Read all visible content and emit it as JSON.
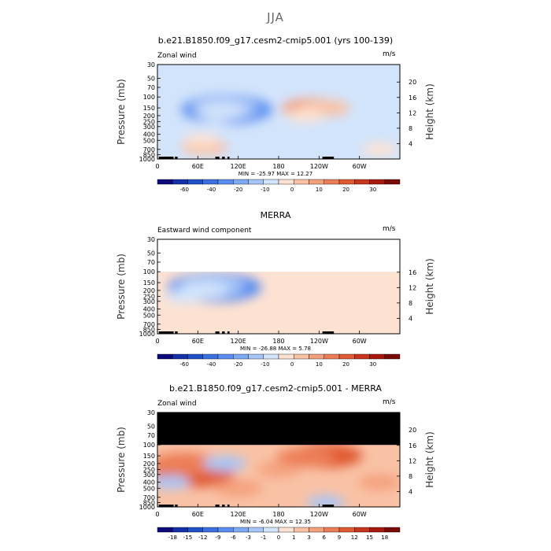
{
  "page_title": "JJA",
  "units": "m/s",
  "axis": {
    "x_ticks": [
      "0",
      "60E",
      "120E",
      "180",
      "120W",
      "60W"
    ],
    "y_ticks": [
      "30",
      "50",
      "70",
      "100",
      "150",
      "200",
      "250",
      "300",
      "400",
      "500",
      "700",
      "850",
      "1000"
    ],
    "ylabel_left": "Pressure (mb)",
    "ylabel_right": "Height (km)",
    "height_ticks": [
      "20",
      "16",
      "12",
      "8",
      "4"
    ]
  },
  "colors": {
    "frame": "#000000",
    "missing": "#000000",
    "terrain": "#000000"
  },
  "chart_data": [
    {
      "type": "heatmap",
      "title": "b.e21.B1850.f09_g17.cesm2-cmip5.001 (yrs 100-139)",
      "subtitle": "Zonal wind",
      "stats": "MIN = -25.97   MAX = 12.27",
      "colorbar": {
        "labels": [
          "-60",
          "-40",
          "-20",
          "-10",
          "0",
          "10",
          "20",
          "30"
        ],
        "colors": [
          "#0a0a7a",
          "#1530a8",
          "#2050c8",
          "#3a70e0",
          "#5a8ef0",
          "#7eaaf5",
          "#a7c6f8",
          "#d2e4fb",
          "#fde2d2",
          "#f9c2a5",
          "#f4a07d",
          "#ec7e57",
          "#e05a33",
          "#c8361a",
          "#a8180c",
          "#7a0a05"
        ]
      },
      "regions": [
        {
          "lon": 103,
          "p": 160,
          "value": -25
        },
        {
          "lon": 100,
          "p": 150,
          "value": -15
        },
        {
          "lon": 95,
          "p": 170,
          "value": -8
        },
        {
          "lon": 228,
          "p": 150,
          "value": 12
        },
        {
          "lon": 250,
          "p": 150,
          "value": 8
        },
        {
          "lon": 220,
          "p": 200,
          "value": 4
        },
        {
          "lon": 70,
          "p": 650,
          "value": 7
        },
        {
          "lon": 65,
          "p": 500,
          "value": 3
        },
        {
          "lon": 200,
          "p": 70,
          "value": -4
        },
        {
          "lon": 80,
          "p": 300,
          "value": -3
        },
        {
          "lon": 330,
          "p": 700,
          "value": 3
        }
      ],
      "background_value": -2,
      "missing_above_p": null
    },
    {
      "type": "heatmap",
      "title": "MERRA",
      "subtitle": "Eastward wind component",
      "stats": "MIN = -26.88   MAX = 5.78",
      "colorbar": {
        "labels": [
          "-60",
          "-40",
          "-20",
          "-10",
          "0",
          "10",
          "20",
          "30"
        ],
        "colors": [
          "#0a0a7a",
          "#1530a8",
          "#2050c8",
          "#3a70e0",
          "#5a8ef0",
          "#7eaaf5",
          "#a7c6f8",
          "#d2e4fb",
          "#fde2d2",
          "#f9c2a5",
          "#f4a07d",
          "#ec7e57",
          "#e05a33",
          "#c8361a",
          "#a8180c",
          "#7a0a05"
        ]
      },
      "regions": [
        {
          "lon": 85,
          "p": 180,
          "value": -26
        },
        {
          "lon": 80,
          "p": 170,
          "value": -15
        },
        {
          "lon": 70,
          "p": 200,
          "value": -8
        },
        {
          "lon": 40,
          "p": 250,
          "value": -4
        },
        {
          "lon": 220,
          "p": 200,
          "value": 3
        },
        {
          "lon": 160,
          "p": 600,
          "value": 2
        },
        {
          "lon": 60,
          "p": 600,
          "value": 4
        },
        {
          "lon": 300,
          "p": 400,
          "value": 2
        }
      ],
      "background_value": 2,
      "missing_above_p": 100,
      "missing_color": "#ffffff"
    },
    {
      "type": "heatmap",
      "title": "b.e21.B1850.f09_g17.cesm2-cmip5.001 - MERRA",
      "subtitle": "Zonal wind",
      "stats": "MIN = -6.04   MAX = 12.35",
      "colorbar": {
        "labels": [
          "-18",
          "-15",
          "-12",
          "-9",
          "-6",
          "-3",
          "-1",
          "0",
          "1",
          "3",
          "6",
          "9",
          "12",
          "15",
          "18"
        ],
        "colors": [
          "#0a0a7a",
          "#1530a8",
          "#2050c8",
          "#3a70e0",
          "#5a8ef0",
          "#7eaaf5",
          "#a7c6f8",
          "#d2e4fb",
          "#fde2d2",
          "#f9c2a5",
          "#f4a07d",
          "#ec7e57",
          "#e05a33",
          "#c8361a",
          "#a8180c",
          "#7a0a05"
        ]
      },
      "regions": [
        {
          "lon": 55,
          "p": 300,
          "value": 10
        },
        {
          "lon": 40,
          "p": 200,
          "value": 8
        },
        {
          "lon": 250,
          "p": 150,
          "value": 9
        },
        {
          "lon": 220,
          "p": 160,
          "value": 6
        },
        {
          "lon": 120,
          "p": 500,
          "value": 4
        },
        {
          "lon": 180,
          "p": 250,
          "value": 3
        },
        {
          "lon": 100,
          "p": 200,
          "value": -3
        },
        {
          "lon": 20,
          "p": 400,
          "value": -2
        },
        {
          "lon": 250,
          "p": 850,
          "value": -2
        },
        {
          "lon": 330,
          "p": 400,
          "value": 3
        }
      ],
      "background_value": 2,
      "missing_above_p": 100,
      "missing_color": "#000000"
    }
  ]
}
